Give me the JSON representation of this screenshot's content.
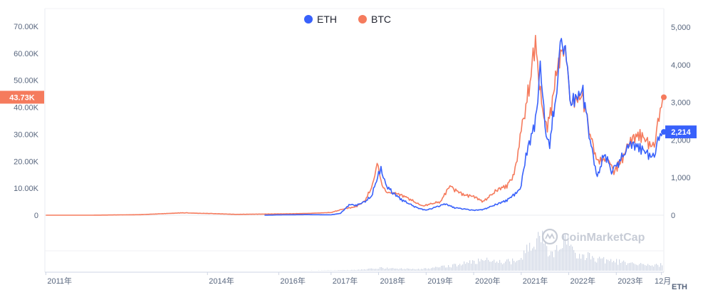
{
  "chart_data": {
    "type": "line",
    "legend": {
      "placement": "top-center",
      "items": [
        {
          "label": "ETH",
          "color": "#3861fb"
        },
        {
          "label": "BTC",
          "color": "#f57b5d"
        }
      ]
    },
    "x_ticks": [
      {
        "label": "2011年",
        "t": 2011.0
      },
      {
        "label": "2014年",
        "t": 2014.4
      },
      {
        "label": "2016年",
        "t": 2015.9
      },
      {
        "label": "2017年",
        "t": 2017.0
      },
      {
        "label": "2018年",
        "t": 2018.0
      },
      {
        "label": "2019年",
        "t": 2019.0
      },
      {
        "label": "2020年",
        "t": 2020.0
      },
      {
        "label": "2021年",
        "t": 2021.0
      },
      {
        "label": "2022年",
        "t": 2022.0
      },
      {
        "label": "2023年",
        "t": 2023.0
      },
      {
        "label": "12月",
        "t": 2023.95
      }
    ],
    "x_range": [
      2010.98,
      2024.0
    ],
    "y_left": {
      "ylim": [
        0,
        70000
      ],
      "ticks": [
        {
          "label": "0",
          "v": 0
        },
        {
          "label": "10.00K",
          "v": 10000
        },
        {
          "label": "20.00K",
          "v": 20000
        },
        {
          "label": "30.00K",
          "v": 30000
        },
        {
          "label": "40.00K",
          "v": 40000
        },
        {
          "label": "50.00K",
          "v": 50000
        },
        {
          "label": "60.00K",
          "v": 60000
        },
        {
          "label": "70.00K",
          "v": 70000
        }
      ],
      "current_label": "43.73K",
      "current_value": 43730,
      "current_color": "#f57b5d"
    },
    "y_right": {
      "ylim": [
        0,
        5000
      ],
      "ticks": [
        {
          "label": "0",
          "v": 0
        },
        {
          "label": "1,000",
          "v": 1000
        },
        {
          "label": "2,000",
          "v": 2000
        },
        {
          "label": "3,000",
          "v": 3000
        },
        {
          "label": "4,000",
          "v": 4000
        },
        {
          "label": "5,000",
          "v": 5000
        }
      ],
      "current_label": "2,214",
      "current_value": 2214,
      "current_color": "#3861fb",
      "unit": "ETH"
    },
    "series": [
      {
        "name": "BTC",
        "color": "#f57b5d",
        "axis": "left",
        "x": [
          2011.0,
          2012.0,
          2013.0,
          2013.9,
          2014.0,
          2014.5,
          2015.0,
          2016.0,
          2016.5,
          2017.0,
          2017.3,
          2017.5,
          2017.7,
          2017.85,
          2017.97,
          2018.05,
          2018.15,
          2018.4,
          2018.6,
          2018.9,
          2019.0,
          2019.3,
          2019.5,
          2019.6,
          2019.8,
          2020.0,
          2020.2,
          2020.5,
          2020.7,
          2020.85,
          2021.0,
          2021.1,
          2021.25,
          2021.3,
          2021.45,
          2021.55,
          2021.7,
          2021.87,
          2021.95,
          2022.05,
          2022.3,
          2022.45,
          2022.6,
          2022.85,
          2022.95,
          2023.2,
          2023.3,
          2023.5,
          2023.7,
          2023.8,
          2023.9,
          2023.95,
          2024.0
        ],
        "y": [
          0,
          10,
          200,
          900,
          800,
          600,
          300,
          500,
          650,
          1000,
          2500,
          3000,
          5000,
          10000,
          19000,
          13000,
          8500,
          8000,
          6500,
          3500,
          3800,
          5000,
          11000,
          9500,
          7500,
          7000,
          5000,
          9500,
          11000,
          15000,
          30000,
          40000,
          57000,
          63000,
          38000,
          32000,
          47000,
          66000,
          57000,
          42000,
          44000,
          30000,
          20000,
          21000,
          16000,
          23000,
          28000,
          30000,
          26500,
          27000,
          35000,
          42000,
          43730
        ]
      },
      {
        "name": "ETH",
        "color": "#3861fb",
        "axis": "right",
        "x": [
          2015.6,
          2016.0,
          2016.5,
          2017.0,
          2017.2,
          2017.4,
          2017.5,
          2017.7,
          2017.85,
          2018.0,
          2018.05,
          2018.15,
          2018.3,
          2018.5,
          2018.8,
          2019.0,
          2019.4,
          2019.6,
          2020.0,
          2020.2,
          2020.5,
          2020.7,
          2020.9,
          2021.0,
          2021.1,
          2021.3,
          2021.4,
          2021.5,
          2021.6,
          2021.75,
          2021.87,
          2021.95,
          2022.05,
          2022.3,
          2022.45,
          2022.6,
          2022.75,
          2022.9,
          2023.0,
          2023.3,
          2023.5,
          2023.7,
          2023.8,
          2023.9,
          2023.95,
          2024.0
        ],
        "y": [
          1,
          10,
          15,
          10,
          50,
          300,
          250,
          350,
          500,
          1100,
          1300,
          800,
          600,
          400,
          200,
          130,
          300,
          200,
          130,
          150,
          300,
          400,
          600,
          750,
          1600,
          2500,
          4100,
          2300,
          1900,
          3400,
          4800,
          4100,
          3000,
          3300,
          2000,
          1000,
          1650,
          1200,
          1300,
          1900,
          1800,
          1600,
          1650,
          2000,
          2214,
          2214
        ]
      }
    ],
    "volume": {
      "x": [
        2011.0,
        2016.0,
        2017.0,
        2017.6,
        2017.9,
        2018.0,
        2018.3,
        2018.8,
        2019.0,
        2019.4,
        2019.7,
        2020.0,
        2020.3,
        2020.7,
        2021.0,
        2021.1,
        2021.3,
        2021.4,
        2021.6,
        2021.8,
        2021.95,
        2022.2,
        2022.4,
        2022.7,
        2023.0,
        2023.3,
        2023.6,
        2023.9,
        2024.0
      ],
      "v": [
        0,
        0,
        0.01,
        0.03,
        0.06,
        0.08,
        0.06,
        0.05,
        0.06,
        0.12,
        0.18,
        0.25,
        0.3,
        0.25,
        0.35,
        0.55,
        0.75,
        1.0,
        0.5,
        0.6,
        0.85,
        0.45,
        0.4,
        0.3,
        0.25,
        0.2,
        0.15,
        0.15,
        0.25
      ],
      "color": "#cfd6e4"
    },
    "watermark": "CoinMarketCap"
  }
}
